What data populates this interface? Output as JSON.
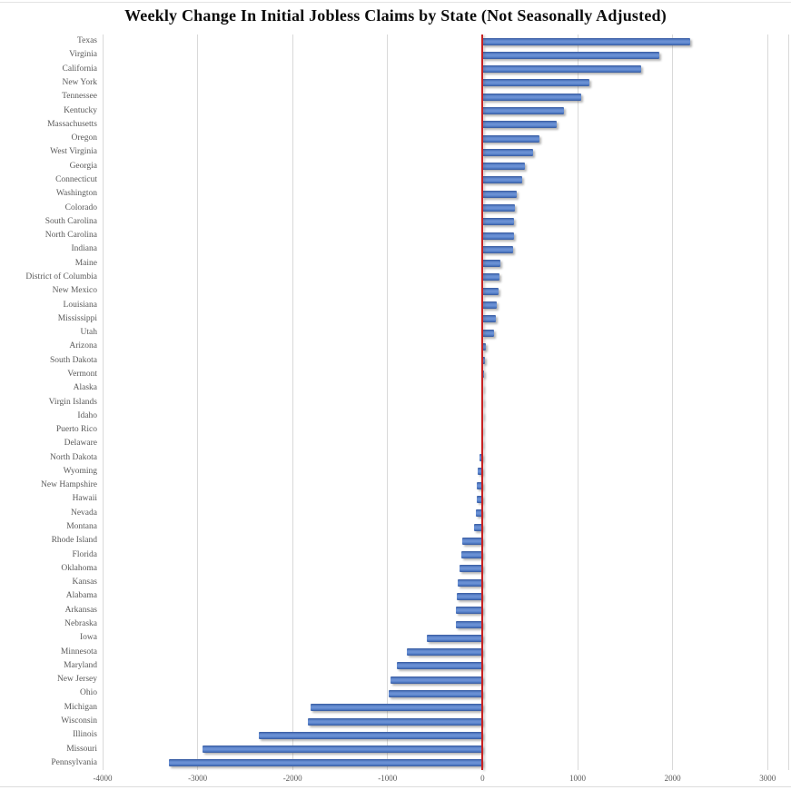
{
  "chart_data": {
    "type": "bar",
    "orientation": "horizontal",
    "title": "Weekly Change In Initial Jobless Claims by State (Not Seasonally Adjusted)",
    "xlabel": "",
    "ylabel": "",
    "xlim": [
      -4000,
      3220
    ],
    "xticks": [
      -4000,
      -3000,
      -2000,
      -1000,
      0,
      1000,
      2000,
      3000
    ],
    "grid": "vertical",
    "legend": "none",
    "bar_color": "#4472C4",
    "bar_edge_color": "#36599E",
    "zero_line_color": "#C82121",
    "gridline_color": "#D9D9D9",
    "axis_label_color": "#595959",
    "title_color": "#0D0D0D",
    "categories": [
      "Texas",
      "Virginia",
      "California",
      "New York",
      "Tennessee",
      "Kentucky",
      "Massachusetts",
      "Oregon",
      "West Virginia",
      "Georgia",
      "Connecticut",
      "Washington",
      "Colorado",
      "South Carolina",
      "North Carolina",
      "Indiana",
      "Maine",
      "District of Columbia",
      "New Mexico",
      "Louisiana",
      "Mississippi",
      "Utah",
      "Arizona",
      "South Dakota",
      "Vermont",
      "Alaska",
      "Virgin Islands",
      "Idaho",
      "Puerto Rico",
      "Delaware",
      "North Dakota",
      "Wyoming",
      "New Hampshire",
      "Hawaii",
      "Nevada",
      "Montana",
      "Rhode Island",
      "Florida",
      "Oklahoma",
      "Kansas",
      "Alabama",
      "Arkansas",
      "Nebraska",
      "Iowa",
      "Minnesota",
      "Maryland",
      "New Jersey",
      "Ohio",
      "Michigan",
      "Wisconsin",
      "Illinois",
      "Missouri",
      "Pennsylvania"
    ],
    "values": [
      2190,
      1860,
      1670,
      1120,
      1040,
      860,
      780,
      600,
      530,
      450,
      420,
      360,
      340,
      335,
      330,
      325,
      185,
      180,
      170,
      150,
      140,
      125,
      35,
      25,
      12,
      6,
      2,
      -6,
      -10,
      -16,
      -35,
      -55,
      -60,
      -65,
      -70,
      -90,
      -215,
      -220,
      -240,
      -265,
      -275,
      -280,
      -285,
      -590,
      -800,
      -900,
      -970,
      -985,
      -1810,
      -1840,
      -2360,
      -2950,
      -3300
    ]
  }
}
